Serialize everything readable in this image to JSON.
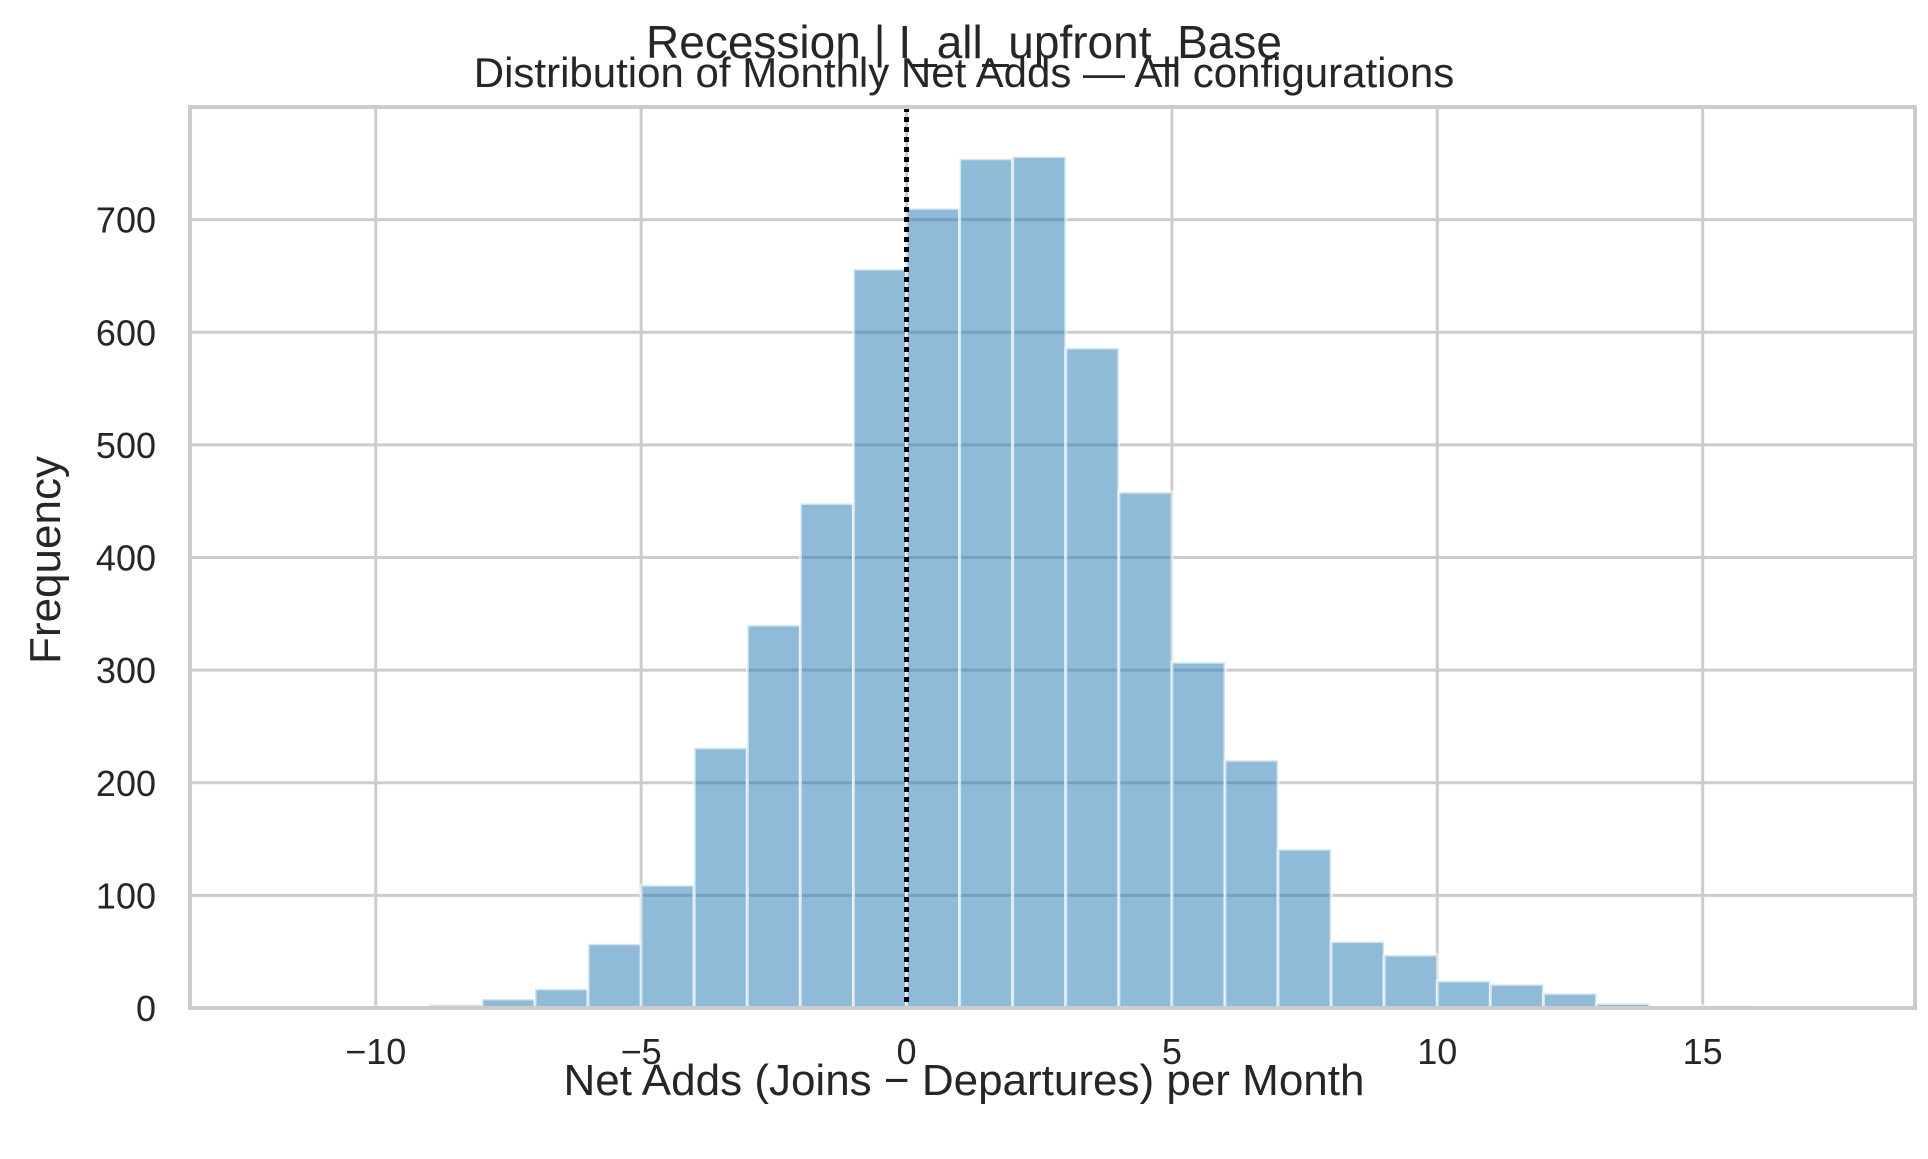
{
  "figure": {
    "suptitle": "Recession | I_all_upfront_Base"
  },
  "chart_data": {
    "type": "bar",
    "title": "Distribution of Monthly Net Adds — All configurations",
    "xlabel": "Net Adds (Joins − Departures) per Month",
    "ylabel": "Frequency",
    "xlim": [
      -13.5,
      19
    ],
    "ylim": [
      0,
      800
    ],
    "xticks": [
      -10,
      -5,
      0,
      5,
      10,
      15
    ],
    "xtick_labels": [
      "−10",
      "−5",
      "0",
      "5",
      "10",
      "15"
    ],
    "yticks": [
      0,
      100,
      200,
      300,
      400,
      500,
      600,
      700
    ],
    "ytick_labels": [
      "0",
      "100",
      "200",
      "300",
      "400",
      "500",
      "600",
      "700"
    ],
    "grid": true,
    "bins": [
      {
        "x0": -12,
        "x1": -11,
        "count": 1
      },
      {
        "x0": -11,
        "x1": -10,
        "count": 1
      },
      {
        "x0": -10,
        "x1": -9,
        "count": 1
      },
      {
        "x0": -9,
        "x1": -8,
        "count": 3
      },
      {
        "x0": -8,
        "x1": -7,
        "count": 8
      },
      {
        "x0": -7,
        "x1": -6,
        "count": 17
      },
      {
        "x0": -6,
        "x1": -5,
        "count": 57
      },
      {
        "x0": -5,
        "x1": -4,
        "count": 109
      },
      {
        "x0": -4,
        "x1": -3,
        "count": 231
      },
      {
        "x0": -3,
        "x1": -2,
        "count": 340
      },
      {
        "x0": -2,
        "x1": -1,
        "count": 448
      },
      {
        "x0": -1,
        "x1": 0,
        "count": 656
      },
      {
        "x0": 0,
        "x1": 1,
        "count": 710
      },
      {
        "x0": 1,
        "x1": 2,
        "count": 754
      },
      {
        "x0": 2,
        "x1": 3,
        "count": 756
      },
      {
        "x0": 3,
        "x1": 4,
        "count": 586
      },
      {
        "x0": 4,
        "x1": 5,
        "count": 458
      },
      {
        "x0": 5,
        "x1": 6,
        "count": 307
      },
      {
        "x0": 6,
        "x1": 7,
        "count": 220
      },
      {
        "x0": 7,
        "x1": 8,
        "count": 141
      },
      {
        "x0": 8,
        "x1": 9,
        "count": 59
      },
      {
        "x0": 9,
        "x1": 10,
        "count": 47
      },
      {
        "x0": 10,
        "x1": 11,
        "count": 24
      },
      {
        "x0": 11,
        "x1": 12,
        "count": 21
      },
      {
        "x0": 12,
        "x1": 13,
        "count": 13
      },
      {
        "x0": 13,
        "x1": 14,
        "count": 4
      },
      {
        "x0": 14,
        "x1": 15,
        "count": 1
      },
      {
        "x0": 15,
        "x1": 16,
        "count": 2
      },
      {
        "x0": 16,
        "x1": 17,
        "count": 1
      },
      {
        "x0": 17,
        "x1": 18,
        "count": 1
      }
    ],
    "reference_line": {
      "x": 0,
      "style": "dotted",
      "color": "#000000"
    },
    "bar_color": "#1f77b4"
  }
}
